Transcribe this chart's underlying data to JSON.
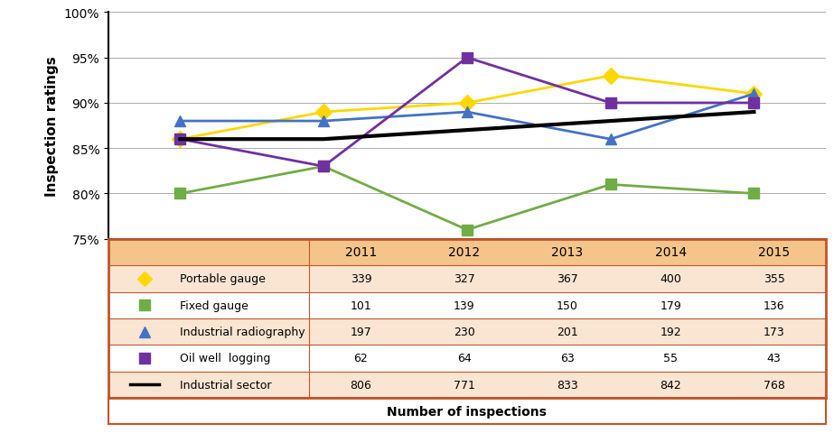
{
  "years": [
    2011,
    2012,
    2013,
    2014,
    2015
  ],
  "series": {
    "Portable gauge": {
      "values": [
        86,
        89,
        90,
        93,
        91
      ],
      "color": "#FFD700",
      "marker": "D",
      "markersize": 9,
      "linewidth": 2.0,
      "counts": [
        339,
        327,
        367,
        400,
        355
      ]
    },
    "Fixed gauge": {
      "values": [
        80,
        83,
        76,
        81,
        80
      ],
      "color": "#70AD47",
      "marker": "s",
      "markersize": 9,
      "linewidth": 2.0,
      "counts": [
        101,
        139,
        150,
        179,
        136
      ]
    },
    "Industrial radiography": {
      "values": [
        88,
        88,
        89,
        86,
        91
      ],
      "color": "#4472C4",
      "marker": "^",
      "markersize": 9,
      "linewidth": 2.0,
      "counts": [
        197,
        230,
        201,
        192,
        173
      ]
    },
    "Oil well  logging": {
      "values": [
        86,
        83,
        95,
        90,
        90
      ],
      "color": "#7030A0",
      "marker": "s",
      "markersize": 9,
      "linewidth": 2.0,
      "counts": [
        62,
        64,
        63,
        55,
        43
      ]
    },
    "Industrial sector": {
      "values": [
        86,
        86,
        87,
        88,
        89
      ],
      "color": "#000000",
      "marker": "None",
      "markersize": 0,
      "linewidth": 3.0,
      "counts": [
        806,
        771,
        833,
        842,
        768
      ]
    }
  },
  "ylim": [
    75,
    100
  ],
  "yticks": [
    75,
    80,
    85,
    90,
    95,
    100
  ],
  "ylabel": "Inspection ratings",
  "xlabel": "Number of inspections",
  "table_header_color": "#F4C48B",
  "table_row_colors": [
    "#FAE5D3",
    "#FFFFFF"
  ],
  "table_border_color": "#C0552A",
  "background_color": "#FFFFFF",
  "chart_background": "#FFFFFF",
  "grid_color": "#AAAAAA"
}
